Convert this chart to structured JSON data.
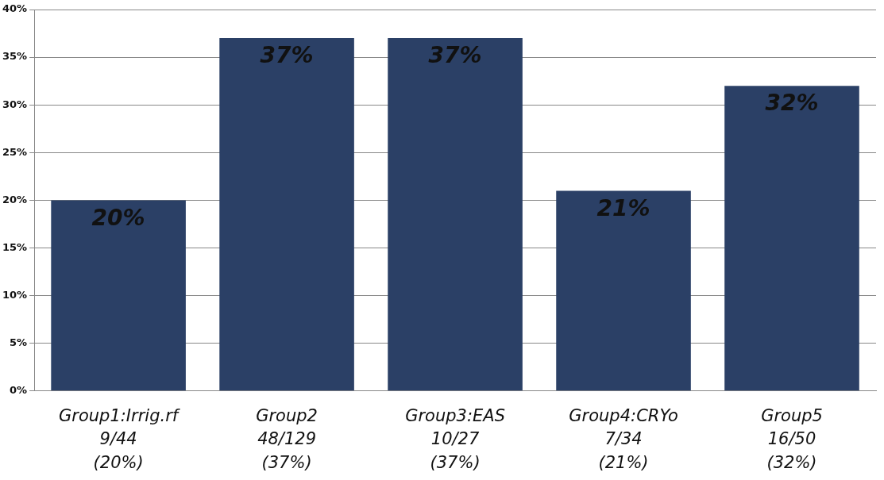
{
  "chart_data": {
    "type": "bar",
    "categories": [
      "Group1:Irrig.rf\n9/44\n(20%)",
      "Group2\n48/129\n(37%)",
      "Group3:EAS\n10/27\n(37%)",
      "Group4:CRYo\n7/34\n(21%)",
      "Group5\n16/50\n(32%)"
    ],
    "values": [
      20,
      37,
      37,
      21,
      32
    ],
    "color": "#2b4066",
    "value_labels": [
      "20%",
      "37%",
      "37%",
      "21%",
      "32%"
    ],
    "ylim": [
      0,
      40
    ],
    "yticks": [
      {
        "value": 0,
        "label": "0%"
      },
      {
        "value": 5,
        "label": "5%"
      },
      {
        "value": 10,
        "label": "10%"
      },
      {
        "value": 15,
        "label": "15%"
      },
      {
        "value": 20,
        "label": "20%"
      },
      {
        "value": 25,
        "label": "25%"
      },
      {
        "value": 30,
        "label": "30%"
      },
      {
        "value": 35,
        "label": "35%"
      },
      {
        "value": 40,
        "label": "40%"
      }
    ],
    "grid": "y"
  }
}
